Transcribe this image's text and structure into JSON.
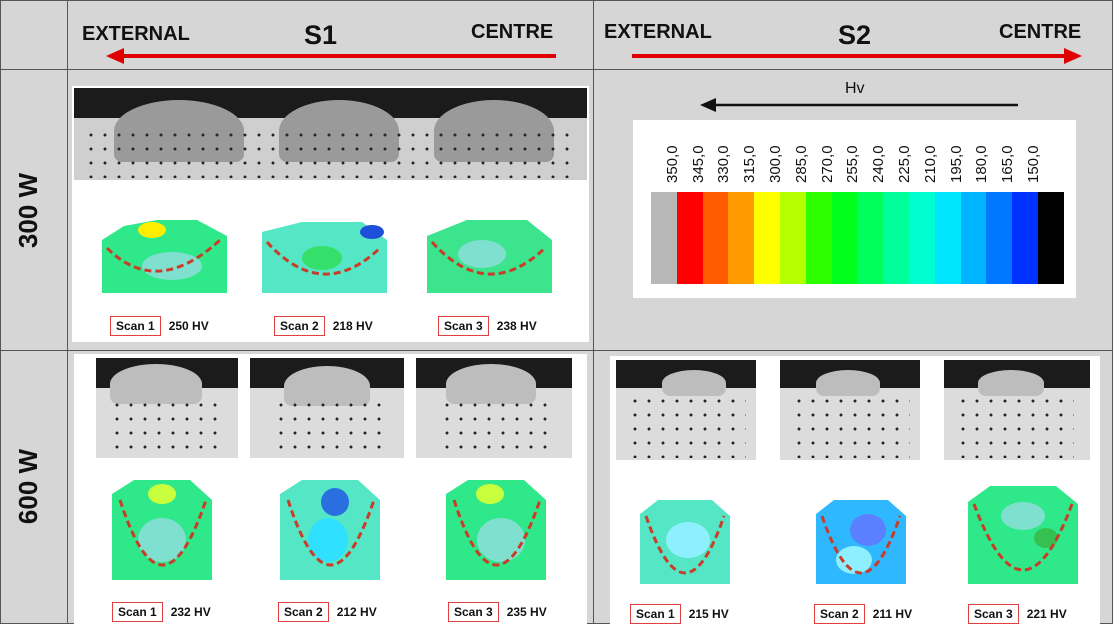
{
  "header": {
    "s1": {
      "title": "S1",
      "left": "EXTERNAL",
      "right": "CENTRE"
    },
    "s2": {
      "title": "S2",
      "left": "EXTERNAL",
      "right": "CENTRE"
    }
  },
  "rows": [
    {
      "label": "300 W"
    },
    {
      "label": "600 W"
    }
  ],
  "scale": {
    "label": "Hv",
    "ticks": [
      "350,0",
      "345,0",
      "330,0",
      "315,0",
      "300,0",
      "285,0",
      "270,0",
      "255,0",
      "240,0",
      "225,0",
      "210,0",
      "195,0",
      "180,0",
      "165,0",
      "150,0"
    ],
    "colors": [
      "#b8b8b8",
      "#ff0000",
      "#ff5a00",
      "#ff9a00",
      "#ffff00",
      "#b6ff00",
      "#2eff00",
      "#00ff1a",
      "#00ff5a",
      "#00ff9a",
      "#00ffd0",
      "#00e6ff",
      "#00b4ff",
      "#0078ff",
      "#0032ff",
      "#000000"
    ]
  },
  "panels": {
    "s1_300": [
      {
        "scan": "Scan 1",
        "hv": "250 HV"
      },
      {
        "scan": "Scan 2",
        "hv": "218 HV"
      },
      {
        "scan": "Scan 3",
        "hv": "238 HV"
      }
    ],
    "s1_600": [
      {
        "scan": "Scan 1",
        "hv": "232 HV"
      },
      {
        "scan": "Scan 2",
        "hv": "212 HV"
      },
      {
        "scan": "Scan 3",
        "hv": "235 HV"
      }
    ],
    "s2_600": [
      {
        "scan": "Scan 1",
        "hv": "215 HV"
      },
      {
        "scan": "Scan 2",
        "hv": "211 HV"
      },
      {
        "scan": "Scan 3",
        "hv": "221 HV"
      }
    ]
  }
}
